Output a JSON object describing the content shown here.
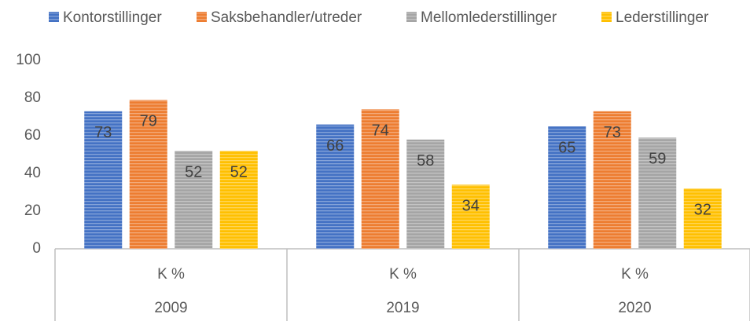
{
  "chart_data": {
    "type": "bar",
    "categories": [
      "2009",
      "2019",
      "2020"
    ],
    "category_sublabels": [
      "K %",
      "K %",
      "K %"
    ],
    "series": [
      {
        "name": "Kontorstillinger",
        "color": "#4472c4",
        "values": [
          73,
          66,
          65
        ]
      },
      {
        "name": "Saksbehandler/utreder",
        "color": "#ed7d31",
        "values": [
          79,
          74,
          73
        ]
      },
      {
        "name": "Mellomlederstillinger",
        "color": "#a5a5a5",
        "values": [
          52,
          58,
          59
        ]
      },
      {
        "name": "Lederstillinger",
        "color": "#ffc000",
        "values": [
          52,
          34,
          32
        ]
      }
    ],
    "ylim": [
      0,
      100
    ],
    "yticks": [
      0,
      20,
      40,
      60,
      80,
      100
    ],
    "grid": false,
    "legend": "top"
  }
}
